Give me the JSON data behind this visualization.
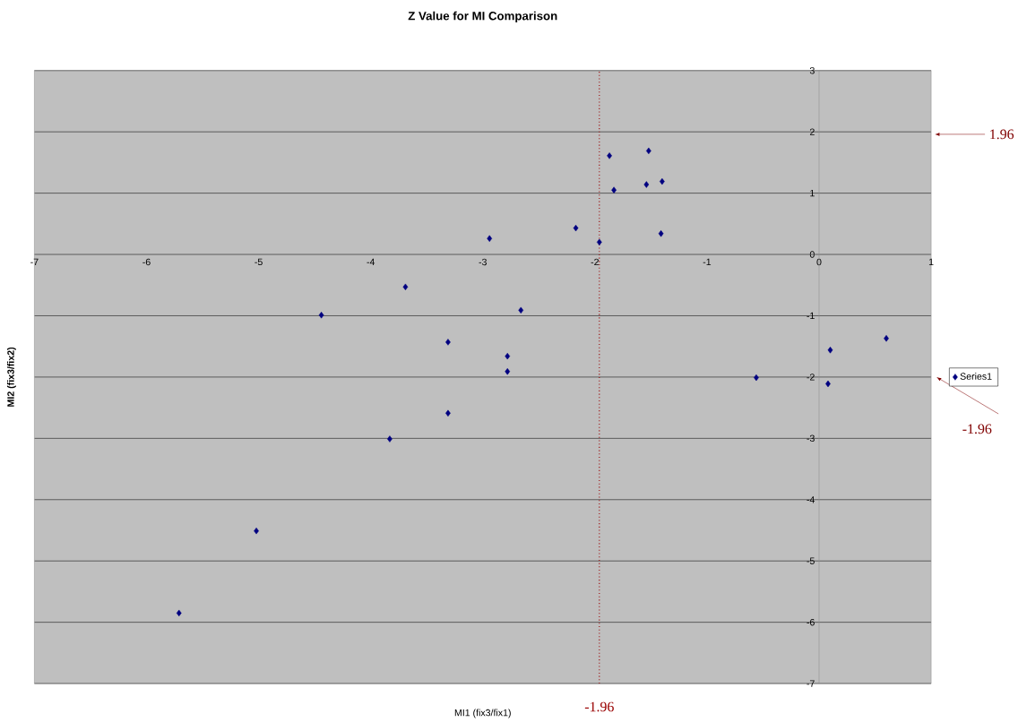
{
  "chart_data": {
    "type": "scatter",
    "title": "Z Value for MI Comparison",
    "xlabel": "MI1 (fix3/fix1)",
    "ylabel": "MI2 (fix3/fix2)",
    "xlim": [
      -7,
      1
    ],
    "xticks": [
      -7,
      -6,
      -5,
      -4,
      -3,
      -2,
      -1,
      0,
      1
    ],
    "ylim": [
      -7,
      3
    ],
    "yticks": [
      -7,
      -6,
      -5,
      -4,
      -3,
      -2,
      -1,
      0,
      1,
      2,
      3
    ],
    "grid": "y",
    "legend": "right",
    "marker": "diamond",
    "series": [
      {
        "name": "Series1",
        "color": "#000080",
        "x": [
          -5.71,
          -5.02,
          -4.44,
          -3.83,
          -3.69,
          -3.31,
          -3.31,
          -2.94,
          -2.78,
          -2.78,
          -2.66,
          -2.17,
          -1.96,
          -1.87,
          -1.83,
          -1.54,
          -1.52,
          -1.4,
          -1.41,
          -0.56,
          0.1,
          0.08,
          0.6
        ],
        "values": [
          -5.85,
          -4.51,
          -0.99,
          -3.01,
          -0.53,
          -1.43,
          -2.59,
          0.26,
          -1.66,
          -1.91,
          -0.91,
          0.43,
          0.2,
          1.61,
          1.05,
          1.14,
          1.69,
          1.19,
          0.34,
          -2.01,
          -1.56,
          -2.11,
          -1.37
        ]
      }
    ],
    "ref_lines": [
      {
        "axis": "x",
        "value": -1.96,
        "label": "-1.96",
        "color": "#990000",
        "line_style": "dotted"
      }
    ],
    "annotations": [
      "1.96",
      "-1.96"
    ]
  }
}
